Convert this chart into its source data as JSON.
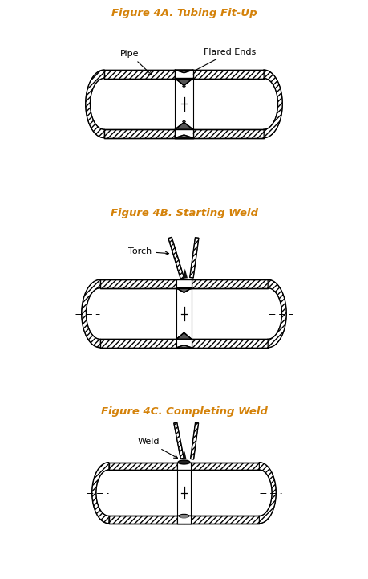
{
  "title_4A": "Figure 4A. Tubing Fit-Up",
  "title_4B": "Figure 4B. Starting Weld",
  "title_4C": "Figure 4C. Completing Weld",
  "title_color": "#d4820a",
  "bg_color": "#ffffff",
  "line_color": "#000000",
  "label_pipe": "Pipe",
  "label_flared": "Flared Ends",
  "label_torch": "Torch",
  "label_weld": "Weld",
  "fig_width": 4.59,
  "fig_height": 7.21
}
